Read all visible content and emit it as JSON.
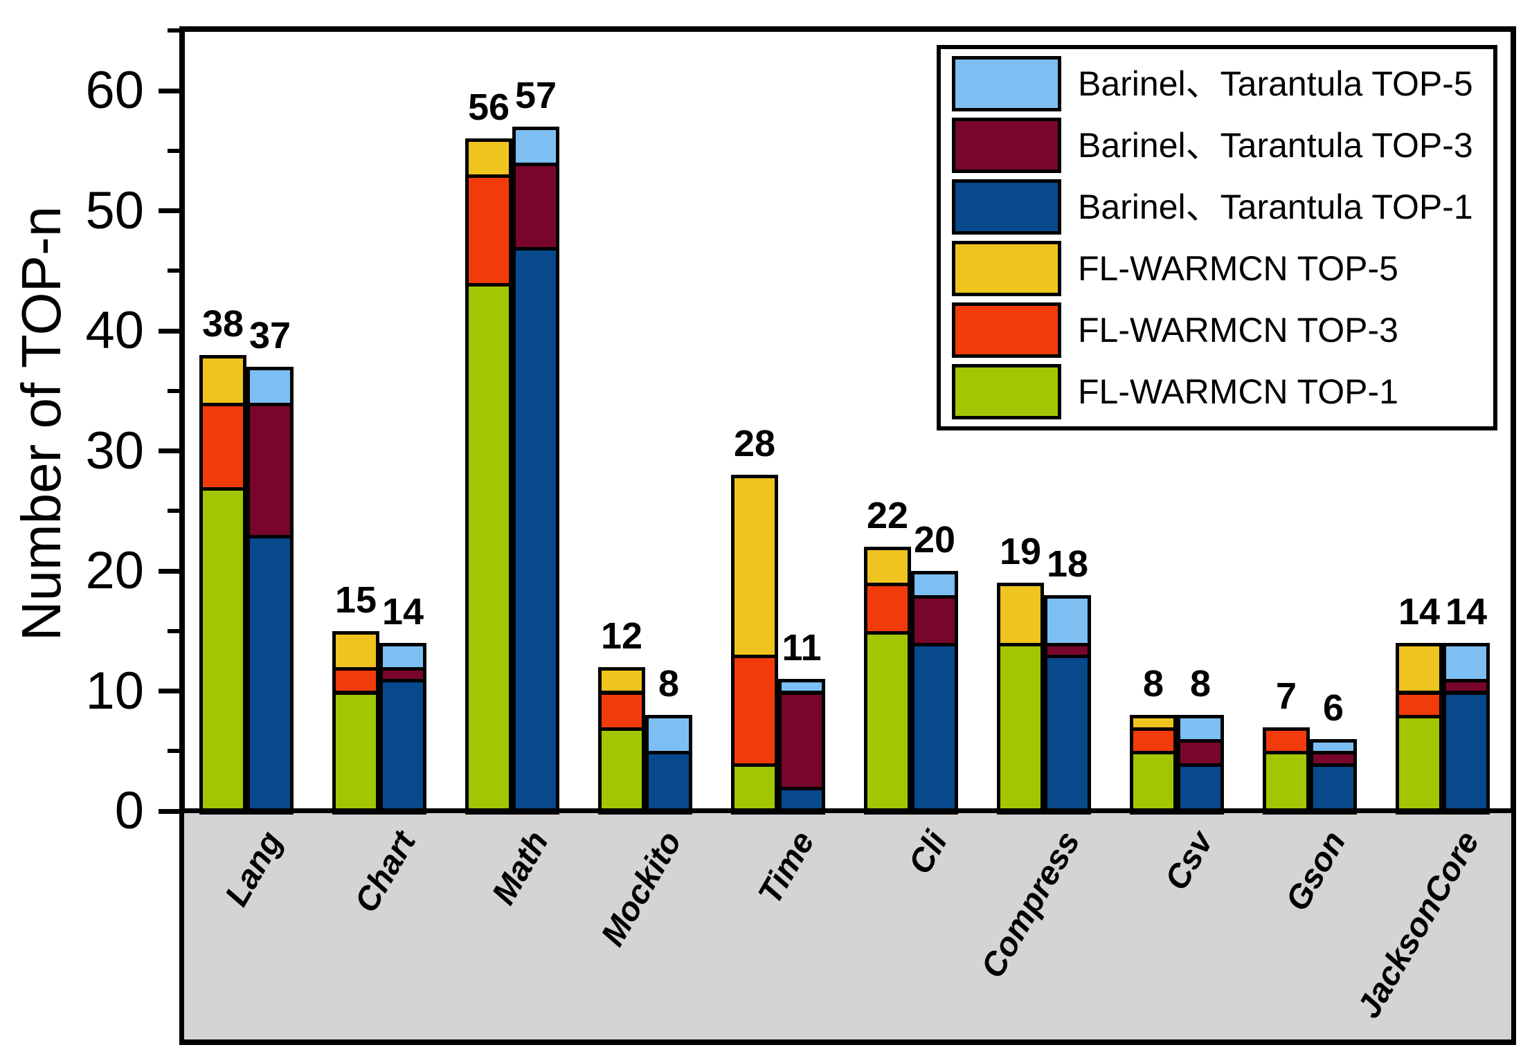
{
  "figure": {
    "background": "#FFFFFF",
    "below_axis_band_color": "#D4D4D4",
    "frame_color": "#000000"
  },
  "legend": {
    "position": "top-right",
    "items": [
      {
        "id": "barinel-tarantula-top5",
        "label": "Barinel、Tarantula TOP-5",
        "color": "#7DBFF2"
      },
      {
        "id": "barinel-tarantula-top3",
        "label": "Barinel、Tarantula TOP-3",
        "color": "#77062A"
      },
      {
        "id": "barinel-tarantula-top1",
        "label": "Barinel、Tarantula TOP-1",
        "color": "#07498A"
      },
      {
        "id": "fl-warmcn-top5",
        "label": "FL-WARMCN TOP-5",
        "color": "#EFC41E"
      },
      {
        "id": "fl-warmcn-top3",
        "label": "FL-WARMCN TOP-3",
        "color": "#F23B0A"
      },
      {
        "id": "fl-warmcn-top1",
        "label": "FL-WARMCN TOP-1",
        "color": "#A3C602"
      }
    ]
  },
  "chart_data": {
    "type": "bar",
    "stacked": true,
    "grouped": true,
    "title": "",
    "xlabel": "",
    "ylabel": "Number of TOP-n",
    "ylim": [
      0,
      65.3
    ],
    "yticks_major": [
      0,
      10,
      20,
      30,
      40,
      50,
      60
    ],
    "yticks_minor": [
      5,
      15,
      25,
      35,
      45,
      55,
      65
    ],
    "grid": false,
    "legend_position": "top-right",
    "categories": [
      "Lang",
      "Chart",
      "Math",
      "Mockito",
      "Time",
      "Cli",
      "Compress",
      "Csv",
      "Gson",
      "JacksonCore"
    ],
    "series": [
      {
        "id": "fl-warmcn-top1",
        "name": "FL-WARMCN TOP-1",
        "stack": "FL-WARMCN",
        "color": "#A3C602",
        "values": [
          27,
          10,
          44,
          7,
          4,
          15,
          14,
          5,
          5,
          8
        ]
      },
      {
        "id": "fl-warmcn-top3",
        "name": "FL-WARMCN TOP-3",
        "stack": "FL-WARMCN",
        "color": "#F23B0A",
        "values": [
          7,
          2,
          9,
          3,
          9,
          4,
          0,
          2,
          2,
          2
        ]
      },
      {
        "id": "fl-warmcn-top5",
        "name": "FL-WARMCN TOP-5",
        "stack": "FL-WARMCN",
        "color": "#EFC41E",
        "values": [
          4,
          3,
          3,
          2,
          15,
          3,
          5,
          1,
          0,
          4
        ]
      },
      {
        "id": "barinel-tarantula-top1",
        "name": "Barinel、Tarantula TOP-1",
        "stack": "Barinel、Tarantula",
        "color": "#07498A",
        "values": [
          23,
          11,
          47,
          5,
          2,
          14,
          13,
          4,
          4,
          10
        ]
      },
      {
        "id": "barinel-tarantula-top3",
        "name": "Barinel、Tarantula TOP-3",
        "stack": "Barinel、Tarantula",
        "color": "#77062A",
        "values": [
          11,
          1,
          7,
          0,
          8,
          4,
          1,
          2,
          1,
          1
        ]
      },
      {
        "id": "barinel-tarantula-top5",
        "name": "Barinel、Tarantula TOP-5",
        "stack": "Barinel、Tarantula",
        "color": "#7DBFF2",
        "values": [
          3,
          2,
          3,
          3,
          1,
          2,
          4,
          2,
          1,
          3
        ]
      }
    ],
    "stack_totals": {
      "FL-WARMCN": [
        38,
        15,
        56,
        12,
        28,
        22,
        19,
        8,
        7,
        14
      ],
      "Barinel、Tarantula": [
        37,
        14,
        57,
        8,
        11,
        20,
        18,
        8,
        6,
        14
      ]
    },
    "bar_value_labels": {
      "left": [
        "38",
        "15",
        "56",
        "12",
        "28",
        "22",
        "19",
        "8",
        "7",
        "14"
      ],
      "right": [
        "37",
        "14",
        "57",
        "8",
        "11",
        "20",
        "18",
        "8",
        "6",
        "14"
      ]
    }
  }
}
